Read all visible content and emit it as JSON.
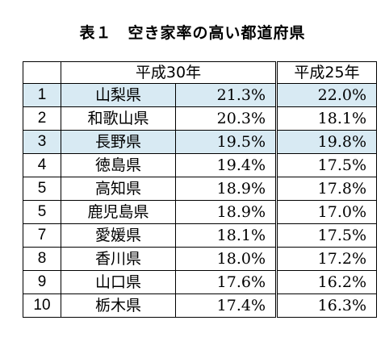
{
  "title": "表１　空き家率の高い都道府県",
  "columns": {
    "rank": "",
    "heisei30": "平成30年",
    "heisei25": "平成25年"
  },
  "colors": {
    "highlight_row": "#d8eaf3",
    "border": "#000000"
  },
  "rows": [
    {
      "rank": "1",
      "prefecture": "山梨県",
      "heisei30": "21.3%",
      "heisei25": "22.0%",
      "highlight": true
    },
    {
      "rank": "2",
      "prefecture": "和歌山県",
      "heisei30": "20.3%",
      "heisei25": "18.1%",
      "highlight": false
    },
    {
      "rank": "3",
      "prefecture": "長野県",
      "heisei30": "19.5%",
      "heisei25": "19.8%",
      "highlight": true
    },
    {
      "rank": "4",
      "prefecture": "徳島県",
      "heisei30": "19.4%",
      "heisei25": "17.5%",
      "highlight": false
    },
    {
      "rank": "5",
      "prefecture": "高知県",
      "heisei30": "18.9%",
      "heisei25": "17.8%",
      "highlight": false
    },
    {
      "rank": "5",
      "prefecture": "鹿児島県",
      "heisei30": "18.9%",
      "heisei25": "17.0%",
      "highlight": false
    },
    {
      "rank": "7",
      "prefecture": "愛媛県",
      "heisei30": "18.1%",
      "heisei25": "17.5%",
      "highlight": false
    },
    {
      "rank": "8",
      "prefecture": "香川県",
      "heisei30": "18.0%",
      "heisei25": "17.2%",
      "highlight": false
    },
    {
      "rank": "9",
      "prefecture": "山口県",
      "heisei30": "17.6%",
      "heisei25": "16.2%",
      "highlight": false
    },
    {
      "rank": "10",
      "prefecture": "栃木県",
      "heisei30": "17.4%",
      "heisei25": "16.3%",
      "highlight": false
    }
  ]
}
